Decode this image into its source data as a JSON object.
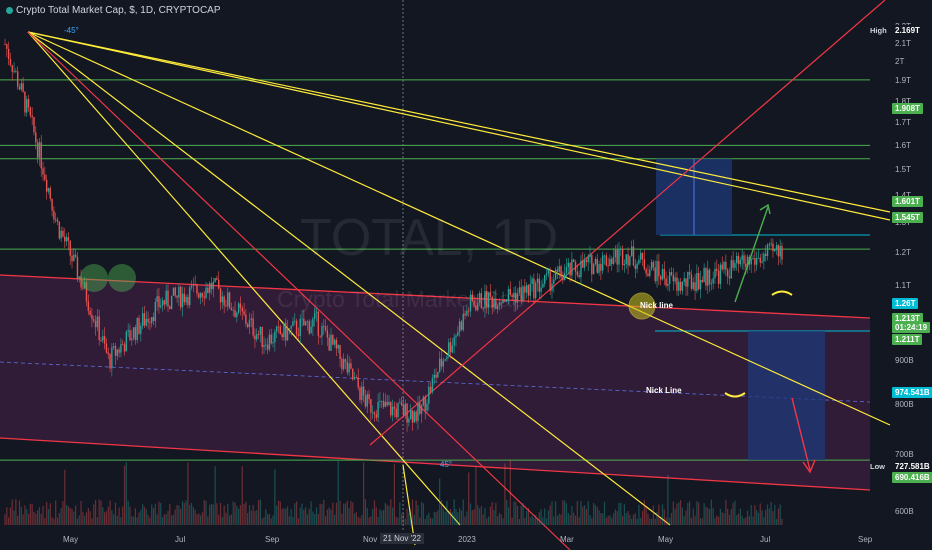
{
  "header": {
    "title": "Crypto Total Market Cap, $, 1D, CRYPTOCAP"
  },
  "watermark": {
    "symbol": "TOTAL, 1D",
    "name": "Crypto Total Market Cap"
  },
  "colors": {
    "background": "#131722",
    "channel_fill": "#3b1f3f",
    "up_candle": "#26a69a",
    "down_candle": "#ef5350",
    "yellow_fan": "#ffeb3b",
    "red_line": "#f23645",
    "green_level": "#4caf50",
    "cyan_level": "#00bcd4",
    "projection_box": "#1e3a7a"
  },
  "chart_data": {
    "type": "candlestick",
    "scale": "log",
    "ylim": [
      0.58,
      2.3
    ],
    "x_ticks": [
      "May",
      "Jul",
      "Sep",
      "Nov",
      "21 Nov '22",
      "2023",
      "Mar",
      "May",
      "Jul",
      "Sep"
    ],
    "y_ticks": [
      "2.2T",
      "2.1T",
      "2T",
      "1.9T",
      "1.8T",
      "1.7T",
      "1.6T",
      "1.5T",
      "1.4T",
      "1.3T",
      "1.2T",
      "1.1T",
      "1T",
      "900B",
      "800B",
      "700B",
      "600B"
    ],
    "price_labels": [
      {
        "label": "High",
        "value": "2.169T"
      },
      {
        "label": "",
        "value": "1.908T"
      },
      {
        "label": "",
        "value": "1.601T"
      },
      {
        "label": "",
        "value": "1.545T"
      },
      {
        "label": "",
        "value": "1.26T"
      },
      {
        "label": "",
        "value": "1.213T"
      },
      {
        "label": "",
        "value": "01:24:19"
      },
      {
        "label": "",
        "value": "1.211T"
      },
      {
        "label": "",
        "value": "974.541B"
      },
      {
        "label": "Low",
        "value": "727.581B"
      },
      {
        "label": "",
        "value": "690.416B"
      }
    ],
    "horizontal_levels": [
      {
        "value": 1.908,
        "color": "green"
      },
      {
        "value": 1.601,
        "color": "green"
      },
      {
        "value": 1.545,
        "color": "green"
      },
      {
        "value": 1.213,
        "color": "green"
      },
      {
        "value": 0.69,
        "color": "green"
      },
      {
        "value": 1.26,
        "color": "cyan"
      },
      {
        "value": 0.9745,
        "color": "cyan"
      }
    ],
    "annotations": [
      "Nick line",
      "Nick Line",
      "-45°",
      "45°"
    ],
    "price_series_monthly": [
      {
        "month": "Apr 2022",
        "close": 2.1
      },
      {
        "month": "May 2022",
        "close": 1.3
      },
      {
        "month": "Jun 2022",
        "close": 0.9
      },
      {
        "month": "Jul 2022",
        "close": 1.05
      },
      {
        "month": "Aug 2022",
        "close": 1.1
      },
      {
        "month": "Sep 2022",
        "close": 0.95
      },
      {
        "month": "Oct 2022",
        "close": 1.0
      },
      {
        "month": "Nov 2022",
        "close": 0.8
      },
      {
        "month": "Dec 2022",
        "close": 0.78
      },
      {
        "month": "Jan 2023",
        "close": 1.05
      },
      {
        "month": "Feb 2023",
        "close": 1.08
      },
      {
        "month": "Mar 2023",
        "close": 1.15
      },
      {
        "month": "Apr 2023",
        "close": 1.2
      },
      {
        "month": "May 2023",
        "close": 1.1
      },
      {
        "month": "Jun 2023",
        "close": 1.15
      },
      {
        "month": "Jul 2023",
        "close": 1.21
      }
    ]
  }
}
